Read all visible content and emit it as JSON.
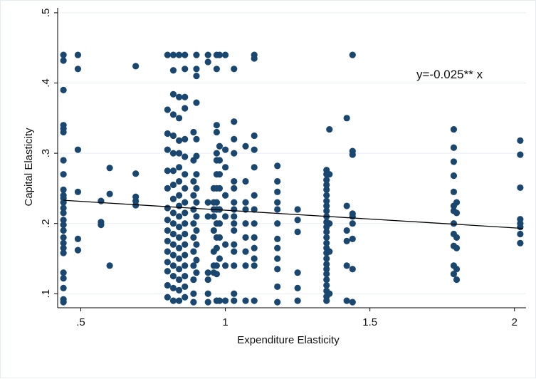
{
  "chart_data": {
    "type": "scatter",
    "title": "",
    "xlabel": "Expenditure Elasticity",
    "ylabel": "Capital Elasticity",
    "xlim": [
      0.42,
      2.04
    ],
    "ylim": [
      0.08,
      0.505
    ],
    "xticks": [
      {
        "value": 0.5,
        "label": ".5"
      },
      {
        "value": 1,
        "label": "1"
      },
      {
        "value": 1.5,
        "label": "1.5"
      },
      {
        "value": 2,
        "label": "2"
      }
    ],
    "yticks": [
      {
        "value": 0.1,
        "label": ".1"
      },
      {
        "value": 0.2,
        "label": ".2"
      },
      {
        "value": 0.3,
        "label": ".3"
      },
      {
        "value": 0.4,
        "label": ".4"
      },
      {
        "value": 0.5,
        "label": ".5"
      }
    ],
    "grid": true,
    "legend": "none",
    "annotation": "y=-0.025** x",
    "colors": {
      "points": "#1a476f",
      "line": "#000000",
      "grid": "#e8eef4",
      "background": "#ffffff"
    },
    "fit_line": {
      "x": [
        0.44,
        2.03
      ],
      "y": [
        0.233,
        0.193
      ]
    },
    "points": [
      [
        0.44,
        0.44
      ],
      [
        0.44,
        0.432
      ],
      [
        0.44,
        0.39
      ],
      [
        0.44,
        0.34
      ],
      [
        0.44,
        0.335
      ],
      [
        0.44,
        0.33
      ],
      [
        0.44,
        0.29
      ],
      [
        0.44,
        0.27
      ],
      [
        0.44,
        0.248
      ],
      [
        0.44,
        0.24
      ],
      [
        0.44,
        0.236
      ],
      [
        0.44,
        0.23
      ],
      [
        0.44,
        0.222
      ],
      [
        0.44,
        0.215
      ],
      [
        0.44,
        0.205
      ],
      [
        0.44,
        0.198
      ],
      [
        0.44,
        0.19
      ],
      [
        0.44,
        0.18
      ],
      [
        0.44,
        0.172
      ],
      [
        0.44,
        0.165
      ],
      [
        0.44,
        0.158
      ],
      [
        0.44,
        0.13
      ],
      [
        0.44,
        0.122
      ],
      [
        0.44,
        0.108
      ],
      [
        0.44,
        0.092
      ],
      [
        0.44,
        0.088
      ],
      [
        0.49,
        0.44
      ],
      [
        0.49,
        0.42
      ],
      [
        0.49,
        0.305
      ],
      [
        0.49,
        0.245
      ],
      [
        0.49,
        0.178
      ],
      [
        0.49,
        0.162
      ],
      [
        0.57,
        0.232
      ],
      [
        0.57,
        0.202
      ],
      [
        0.57,
        0.198
      ],
      [
        0.6,
        0.279
      ],
      [
        0.6,
        0.242
      ],
      [
        0.6,
        0.14
      ],
      [
        0.69,
        0.424
      ],
      [
        0.69,
        0.271
      ],
      [
        0.69,
        0.238
      ],
      [
        0.69,
        0.232
      ],
      [
        0.69,
        0.226
      ],
      [
        0.8,
        0.44
      ],
      [
        0.8,
        0.362
      ],
      [
        0.8,
        0.328
      ],
      [
        0.8,
        0.305
      ],
      [
        0.8,
        0.275
      ],
      [
        0.8,
        0.25
      ],
      [
        0.8,
        0.222
      ],
      [
        0.8,
        0.205
      ],
      [
        0.8,
        0.19
      ],
      [
        0.8,
        0.175
      ],
      [
        0.8,
        0.16
      ],
      [
        0.8,
        0.145
      ],
      [
        0.8,
        0.132
      ],
      [
        0.8,
        0.112
      ],
      [
        0.8,
        0.095
      ],
      [
        0.82,
        0.44
      ],
      [
        0.82,
        0.418
      ],
      [
        0.82,
        0.384
      ],
      [
        0.82,
        0.355
      ],
      [
        0.82,
        0.325
      ],
      [
        0.82,
        0.3
      ],
      [
        0.82,
        0.275
      ],
      [
        0.82,
        0.255
      ],
      [
        0.82,
        0.235
      ],
      [
        0.82,
        0.215
      ],
      [
        0.82,
        0.2
      ],
      [
        0.82,
        0.185
      ],
      [
        0.82,
        0.17
      ],
      [
        0.82,
        0.155
      ],
      [
        0.82,
        0.14
      ],
      [
        0.82,
        0.125
      ],
      [
        0.82,
        0.108
      ],
      [
        0.82,
        0.09
      ],
      [
        0.84,
        0.44
      ],
      [
        0.84,
        0.38
      ],
      [
        0.84,
        0.35
      ],
      [
        0.84,
        0.318
      ],
      [
        0.84,
        0.3
      ],
      [
        0.84,
        0.28
      ],
      [
        0.84,
        0.26
      ],
      [
        0.84,
        0.24
      ],
      [
        0.84,
        0.225
      ],
      [
        0.84,
        0.21
      ],
      [
        0.84,
        0.195
      ],
      [
        0.84,
        0.18
      ],
      [
        0.84,
        0.165
      ],
      [
        0.84,
        0.15
      ],
      [
        0.84,
        0.135
      ],
      [
        0.84,
        0.12
      ],
      [
        0.84,
        0.105
      ],
      [
        0.84,
        0.09
      ],
      [
        0.86,
        0.44
      ],
      [
        0.86,
        0.42
      ],
      [
        0.86,
        0.38
      ],
      [
        0.86,
        0.364
      ],
      [
        0.86,
        0.32
      ],
      [
        0.86,
        0.295
      ],
      [
        0.86,
        0.27
      ],
      [
        0.86,
        0.25
      ],
      [
        0.86,
        0.23
      ],
      [
        0.86,
        0.215
      ],
      [
        0.86,
        0.2
      ],
      [
        0.86,
        0.185
      ],
      [
        0.86,
        0.17
      ],
      [
        0.86,
        0.155
      ],
      [
        0.86,
        0.14
      ],
      [
        0.86,
        0.125
      ],
      [
        0.86,
        0.11
      ],
      [
        0.86,
        0.095
      ],
      [
        0.89,
        0.33
      ],
      [
        0.89,
        0.29
      ],
      [
        0.89,
        0.26
      ],
      [
        0.89,
        0.24
      ],
      [
        0.89,
        0.22
      ],
      [
        0.89,
        0.2
      ],
      [
        0.89,
        0.18
      ],
      [
        0.89,
        0.16
      ],
      [
        0.89,
        0.14
      ],
      [
        0.89,
        0.12
      ],
      [
        0.89,
        0.1
      ],
      [
        0.89,
        0.088
      ],
      [
        0.9,
        0.44
      ],
      [
        0.9,
        0.41
      ],
      [
        0.9,
        0.42
      ],
      [
        0.9,
        0.372
      ],
      [
        0.9,
        0.32
      ],
      [
        0.9,
        0.296
      ],
      [
        0.9,
        0.27
      ],
      [
        0.9,
        0.25
      ],
      [
        0.9,
        0.23
      ],
      [
        0.9,
        0.21
      ],
      [
        0.9,
        0.19
      ],
      [
        0.9,
        0.17
      ],
      [
        0.9,
        0.148
      ],
      [
        0.9,
        0.13
      ],
      [
        0.94,
        0.44
      ],
      [
        0.94,
        0.43
      ],
      [
        0.94,
        0.23
      ],
      [
        0.94,
        0.21
      ],
      [
        0.94,
        0.13
      ],
      [
        0.94,
        0.12
      ],
      [
        0.94,
        0.1
      ],
      [
        0.94,
        0.088
      ],
      [
        0.96,
        0.25
      ],
      [
        0.96,
        0.23
      ],
      [
        0.96,
        0.22
      ],
      [
        0.96,
        0.21
      ],
      [
        0.96,
        0.19
      ],
      [
        0.96,
        0.16
      ],
      [
        0.96,
        0.14
      ],
      [
        0.96,
        0.13
      ],
      [
        0.97,
        0.44
      ],
      [
        0.97,
        0.42
      ],
      [
        0.97,
        0.34
      ],
      [
        0.97,
        0.33
      ],
      [
        0.97,
        0.3
      ],
      [
        0.97,
        0.29
      ],
      [
        0.97,
        0.27
      ],
      [
        0.97,
        0.25
      ],
      [
        0.97,
        0.23
      ],
      [
        0.97,
        0.22
      ],
      [
        0.97,
        0.2
      ],
      [
        0.97,
        0.18
      ],
      [
        0.97,
        0.165
      ],
      [
        0.97,
        0.14
      ],
      [
        0.97,
        0.128
      ],
      [
        0.97,
        0.09
      ],
      [
        0.98,
        0.44
      ],
      [
        0.98,
        0.31
      ],
      [
        0.98,
        0.29
      ],
      [
        0.98,
        0.27
      ],
      [
        0.98,
        0.25
      ],
      [
        0.98,
        0.22
      ],
      [
        0.98,
        0.2
      ],
      [
        0.98,
        0.18
      ],
      [
        0.98,
        0.15
      ],
      [
        0.98,
        0.09
      ],
      [
        1.0,
        0.44
      ],
      [
        1.0,
        0.305
      ],
      [
        1.0,
        0.28
      ],
      [
        1.0,
        0.24
      ],
      [
        1.0,
        0.21
      ],
      [
        1.0,
        0.17
      ],
      [
        1.0,
        0.14
      ],
      [
        1.0,
        0.09
      ],
      [
        1.03,
        0.42
      ],
      [
        1.03,
        0.345
      ],
      [
        1.03,
        0.32
      ],
      [
        1.03,
        0.3
      ],
      [
        1.03,
        0.26
      ],
      [
        1.03,
        0.25
      ],
      [
        1.03,
        0.23
      ],
      [
        1.03,
        0.22
      ],
      [
        1.03,
        0.21
      ],
      [
        1.03,
        0.2
      ],
      [
        1.03,
        0.19
      ],
      [
        1.03,
        0.17
      ],
      [
        1.03,
        0.16
      ],
      [
        1.03,
        0.14
      ],
      [
        1.03,
        0.1
      ],
      [
        1.03,
        0.09
      ],
      [
        1.07,
        0.31
      ],
      [
        1.07,
        0.26
      ],
      [
        1.07,
        0.23
      ],
      [
        1.07,
        0.22
      ],
      [
        1.07,
        0.2
      ],
      [
        1.07,
        0.18
      ],
      [
        1.07,
        0.16
      ],
      [
        1.07,
        0.14
      ],
      [
        1.07,
        0.09
      ],
      [
        1.1,
        0.44
      ],
      [
        1.1,
        0.435
      ],
      [
        1.1,
        0.325
      ],
      [
        1.1,
        0.305
      ],
      [
        1.1,
        0.28
      ],
      [
        1.1,
        0.24
      ],
      [
        1.1,
        0.22
      ],
      [
        1.1,
        0.2
      ],
      [
        1.1,
        0.18
      ],
      [
        1.1,
        0.165
      ],
      [
        1.1,
        0.15
      ],
      [
        1.1,
        0.14
      ],
      [
        1.1,
        0.09
      ],
      [
        1.18,
        0.282
      ],
      [
        1.18,
        0.26
      ],
      [
        1.18,
        0.245
      ],
      [
        1.18,
        0.23
      ],
      [
        1.18,
        0.22
      ],
      [
        1.18,
        0.2
      ],
      [
        1.18,
        0.178
      ],
      [
        1.18,
        0.165
      ],
      [
        1.18,
        0.15
      ],
      [
        1.18,
        0.135
      ],
      [
        1.18,
        0.11
      ],
      [
        1.18,
        0.088
      ],
      [
        1.25,
        0.22
      ],
      [
        1.25,
        0.205
      ],
      [
        1.25,
        0.188
      ],
      [
        1.25,
        0.13
      ],
      [
        1.25,
        0.108
      ],
      [
        1.25,
        0.09
      ],
      [
        1.35,
        0.276
      ],
      [
        1.35,
        0.27
      ],
      [
        1.35,
        0.262
      ],
      [
        1.35,
        0.255
      ],
      [
        1.35,
        0.248
      ],
      [
        1.35,
        0.24
      ],
      [
        1.35,
        0.232
      ],
      [
        1.35,
        0.225
      ],
      [
        1.35,
        0.218
      ],
      [
        1.35,
        0.21
      ],
      [
        1.35,
        0.202
      ],
      [
        1.35,
        0.195
      ],
      [
        1.35,
        0.188
      ],
      [
        1.35,
        0.18
      ],
      [
        1.35,
        0.172
      ],
      [
        1.35,
        0.165
      ],
      [
        1.35,
        0.158
      ],
      [
        1.35,
        0.15
      ],
      [
        1.35,
        0.142
      ],
      [
        1.35,
        0.135
      ],
      [
        1.35,
        0.128
      ],
      [
        1.35,
        0.12
      ],
      [
        1.35,
        0.112
      ],
      [
        1.35,
        0.104
      ],
      [
        1.35,
        0.096
      ],
      [
        1.35,
        0.09
      ],
      [
        1.36,
        0.334
      ],
      [
        1.36,
        0.27
      ],
      [
        1.36,
        0.2
      ],
      [
        1.36,
        0.16
      ],
      [
        1.36,
        0.1
      ],
      [
        1.42,
        0.35
      ],
      [
        1.42,
        0.225
      ],
      [
        1.42,
        0.19
      ],
      [
        1.42,
        0.175
      ],
      [
        1.42,
        0.14
      ],
      [
        1.42,
        0.09
      ],
      [
        1.44,
        0.44
      ],
      [
        1.44,
        0.303
      ],
      [
        1.44,
        0.298
      ],
      [
        1.44,
        0.214
      ],
      [
        1.44,
        0.21
      ],
      [
        1.44,
        0.2
      ],
      [
        1.44,
        0.178
      ],
      [
        1.44,
        0.135
      ],
      [
        1.44,
        0.088
      ],
      [
        1.79,
        0.334
      ],
      [
        1.79,
        0.308
      ],
      [
        1.79,
        0.288
      ],
      [
        1.79,
        0.268
      ],
      [
        1.79,
        0.245
      ],
      [
        1.79,
        0.225
      ],
      [
        1.79,
        0.218
      ],
      [
        1.79,
        0.2
      ],
      [
        1.79,
        0.185
      ],
      [
        1.79,
        0.168
      ],
      [
        1.79,
        0.14
      ],
      [
        1.79,
        0.128
      ],
      [
        1.8,
        0.23
      ],
      [
        1.8,
        0.215
      ],
      [
        1.8,
        0.18
      ],
      [
        1.8,
        0.165
      ],
      [
        1.8,
        0.135
      ],
      [
        1.8,
        0.12
      ],
      [
        2.02,
        0.318
      ],
      [
        2.02,
        0.298
      ],
      [
        2.02,
        0.251
      ],
      [
        2.02,
        0.206
      ],
      [
        2.02,
        0.2
      ],
      [
        2.02,
        0.195
      ],
      [
        2.02,
        0.185
      ],
      [
        2.02,
        0.172
      ]
    ]
  }
}
